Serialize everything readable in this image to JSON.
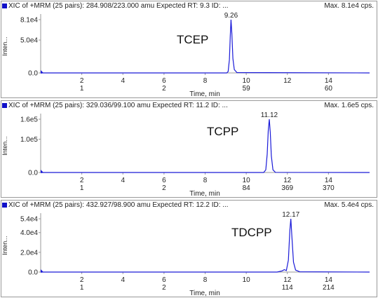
{
  "colors": {
    "trace": "#1a1ad8",
    "axis": "#9a9a9a",
    "icon": "#1010c8"
  },
  "x_axis_label": "Time, min",
  "y_axis_label": "Inten...",
  "chart_data": [
    {
      "type": "line",
      "header": "XIC of +MRM (25 pairs): 284.908/223.000 amu Expected RT: 9.3 ID: ...",
      "max_label": "Max. 8.1e4 cps.",
      "compound": "TCEP",
      "xlim": [
        0,
        16
      ],
      "ylim": [
        0,
        81000
      ],
      "x_ticks": [
        "2",
        "4",
        "6",
        "8",
        "10",
        "12",
        "14"
      ],
      "scan_ticks": [
        {
          "x": 2,
          "label": "1"
        },
        {
          "x": 6,
          "label": "2"
        },
        {
          "x": 10,
          "label": "59"
        },
        {
          "x": 14,
          "label": "60"
        }
      ],
      "y_ticks": [
        {
          "value": 0,
          "label": "0.0"
        },
        {
          "value": 50000,
          "label": "5.0e4"
        },
        {
          "value": 81000,
          "label": "8.1e4"
        }
      ],
      "peak_label": "9.26",
      "series": [
        {
          "x": [
            0,
            9.05,
            9.12,
            9.18,
            9.22,
            9.26,
            9.3,
            9.35,
            9.42,
            9.55,
            16
          ],
          "y": [
            0,
            0,
            2000,
            20000,
            55000,
            81000,
            60000,
            22000,
            5000,
            500,
            0
          ]
        }
      ]
    },
    {
      "type": "line",
      "header": "XIC of +MRM (25 pairs): 329.036/99.100 amu Expected RT: 11.2 ID: ...",
      "max_label": "Max. 1.6e5 cps.",
      "compound": "TCPP",
      "xlim": [
        0,
        16
      ],
      "ylim": [
        0,
        160000
      ],
      "x_ticks": [
        "2",
        "4",
        "6",
        "8",
        "10",
        "12",
        "14"
      ],
      "scan_ticks": [
        {
          "x": 2,
          "label": "1"
        },
        {
          "x": 6,
          "label": "2"
        },
        {
          "x": 10,
          "label": "84"
        },
        {
          "x": 12,
          "label": "369"
        },
        {
          "x": 14,
          "label": "370"
        }
      ],
      "y_ticks": [
        {
          "value": 0,
          "label": "0.0"
        },
        {
          "value": 100000,
          "label": "1.0e5"
        },
        {
          "value": 160000,
          "label": "1.6e5"
        }
      ],
      "peak_label": "11.12",
      "series": [
        {
          "x": [
            0,
            10.85,
            10.95,
            11.02,
            11.07,
            11.12,
            11.17,
            11.22,
            11.3,
            11.42,
            16
          ],
          "y": [
            0,
            0,
            8000,
            55000,
            125000,
            160000,
            120000,
            50000,
            8000,
            500,
            0
          ]
        }
      ]
    },
    {
      "type": "line",
      "header": "XIC of +MRM (25 pairs): 432.927/98.900 amu Expected RT: 12.2 ID: ...",
      "max_label": "Max. 5.4e4 cps.",
      "compound": "TDCPP",
      "xlim": [
        0,
        16
      ],
      "ylim": [
        0,
        54000
      ],
      "x_ticks": [
        "2",
        "4",
        "6",
        "8",
        "10",
        "12",
        "14"
      ],
      "scan_ticks": [
        {
          "x": 2,
          "label": "1"
        },
        {
          "x": 6,
          "label": "2"
        },
        {
          "x": 12,
          "label": "114"
        },
        {
          "x": 14,
          "label": "214"
        }
      ],
      "y_ticks": [
        {
          "value": 0,
          "label": "0.0"
        },
        {
          "value": 20000,
          "label": "2.0e4"
        },
        {
          "value": 40000,
          "label": "4.0e4"
        },
        {
          "value": 54000,
          "label": "5.4e4"
        }
      ],
      "peak_label": "12.17",
      "series": [
        {
          "x": [
            0,
            11.5,
            11.75,
            11.85,
            11.95,
            12.05,
            12.12,
            12.17,
            12.22,
            12.3,
            12.4,
            12.6,
            16
          ],
          "y": [
            0,
            0,
            1200,
            2500,
            1500,
            12000,
            42000,
            54000,
            36000,
            10000,
            2000,
            300,
            0
          ]
        }
      ]
    }
  ]
}
